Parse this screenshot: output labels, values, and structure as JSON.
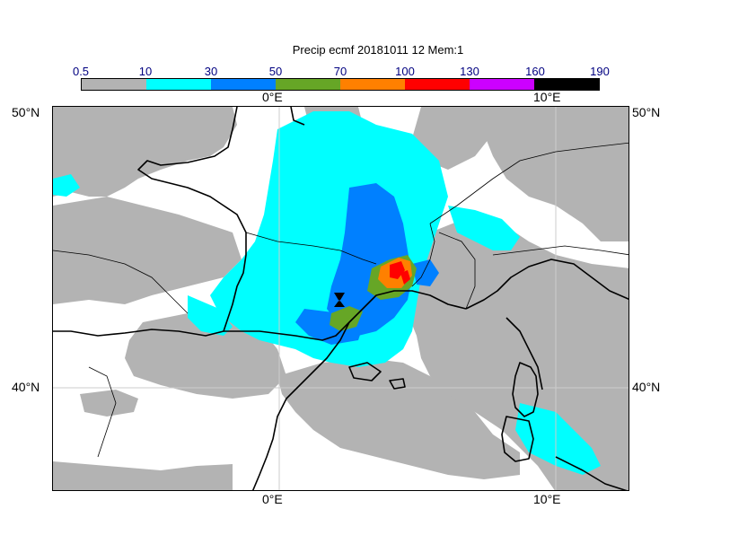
{
  "title": "Precip ecmf 20181011 12 Mem:1",
  "colorbar": {
    "ticks": [
      "0.5",
      "10",
      "30",
      "50",
      "70",
      "100",
      "130",
      "160",
      "190"
    ],
    "colors": [
      "#b3b3b3",
      "#00ffff",
      "#0080ff",
      "#66a626",
      "#ff8000",
      "#ff0000",
      "#cc00ff",
      "#000000"
    ]
  },
  "axes": {
    "lon_top_left": "0°E",
    "lon_top_right": "10°E",
    "lon_bottom_left": "0°E",
    "lon_bottom_right": "10°E",
    "lat_top_left": "50°N",
    "lat_top_right": "50°N",
    "lat_bottom_left": "40°N",
    "lat_bottom_right": "40°N"
  },
  "map": {
    "region": "Western Mediterranean / France",
    "land_no_precip": "#ffffff",
    "grid_color": "#cccccc"
  }
}
